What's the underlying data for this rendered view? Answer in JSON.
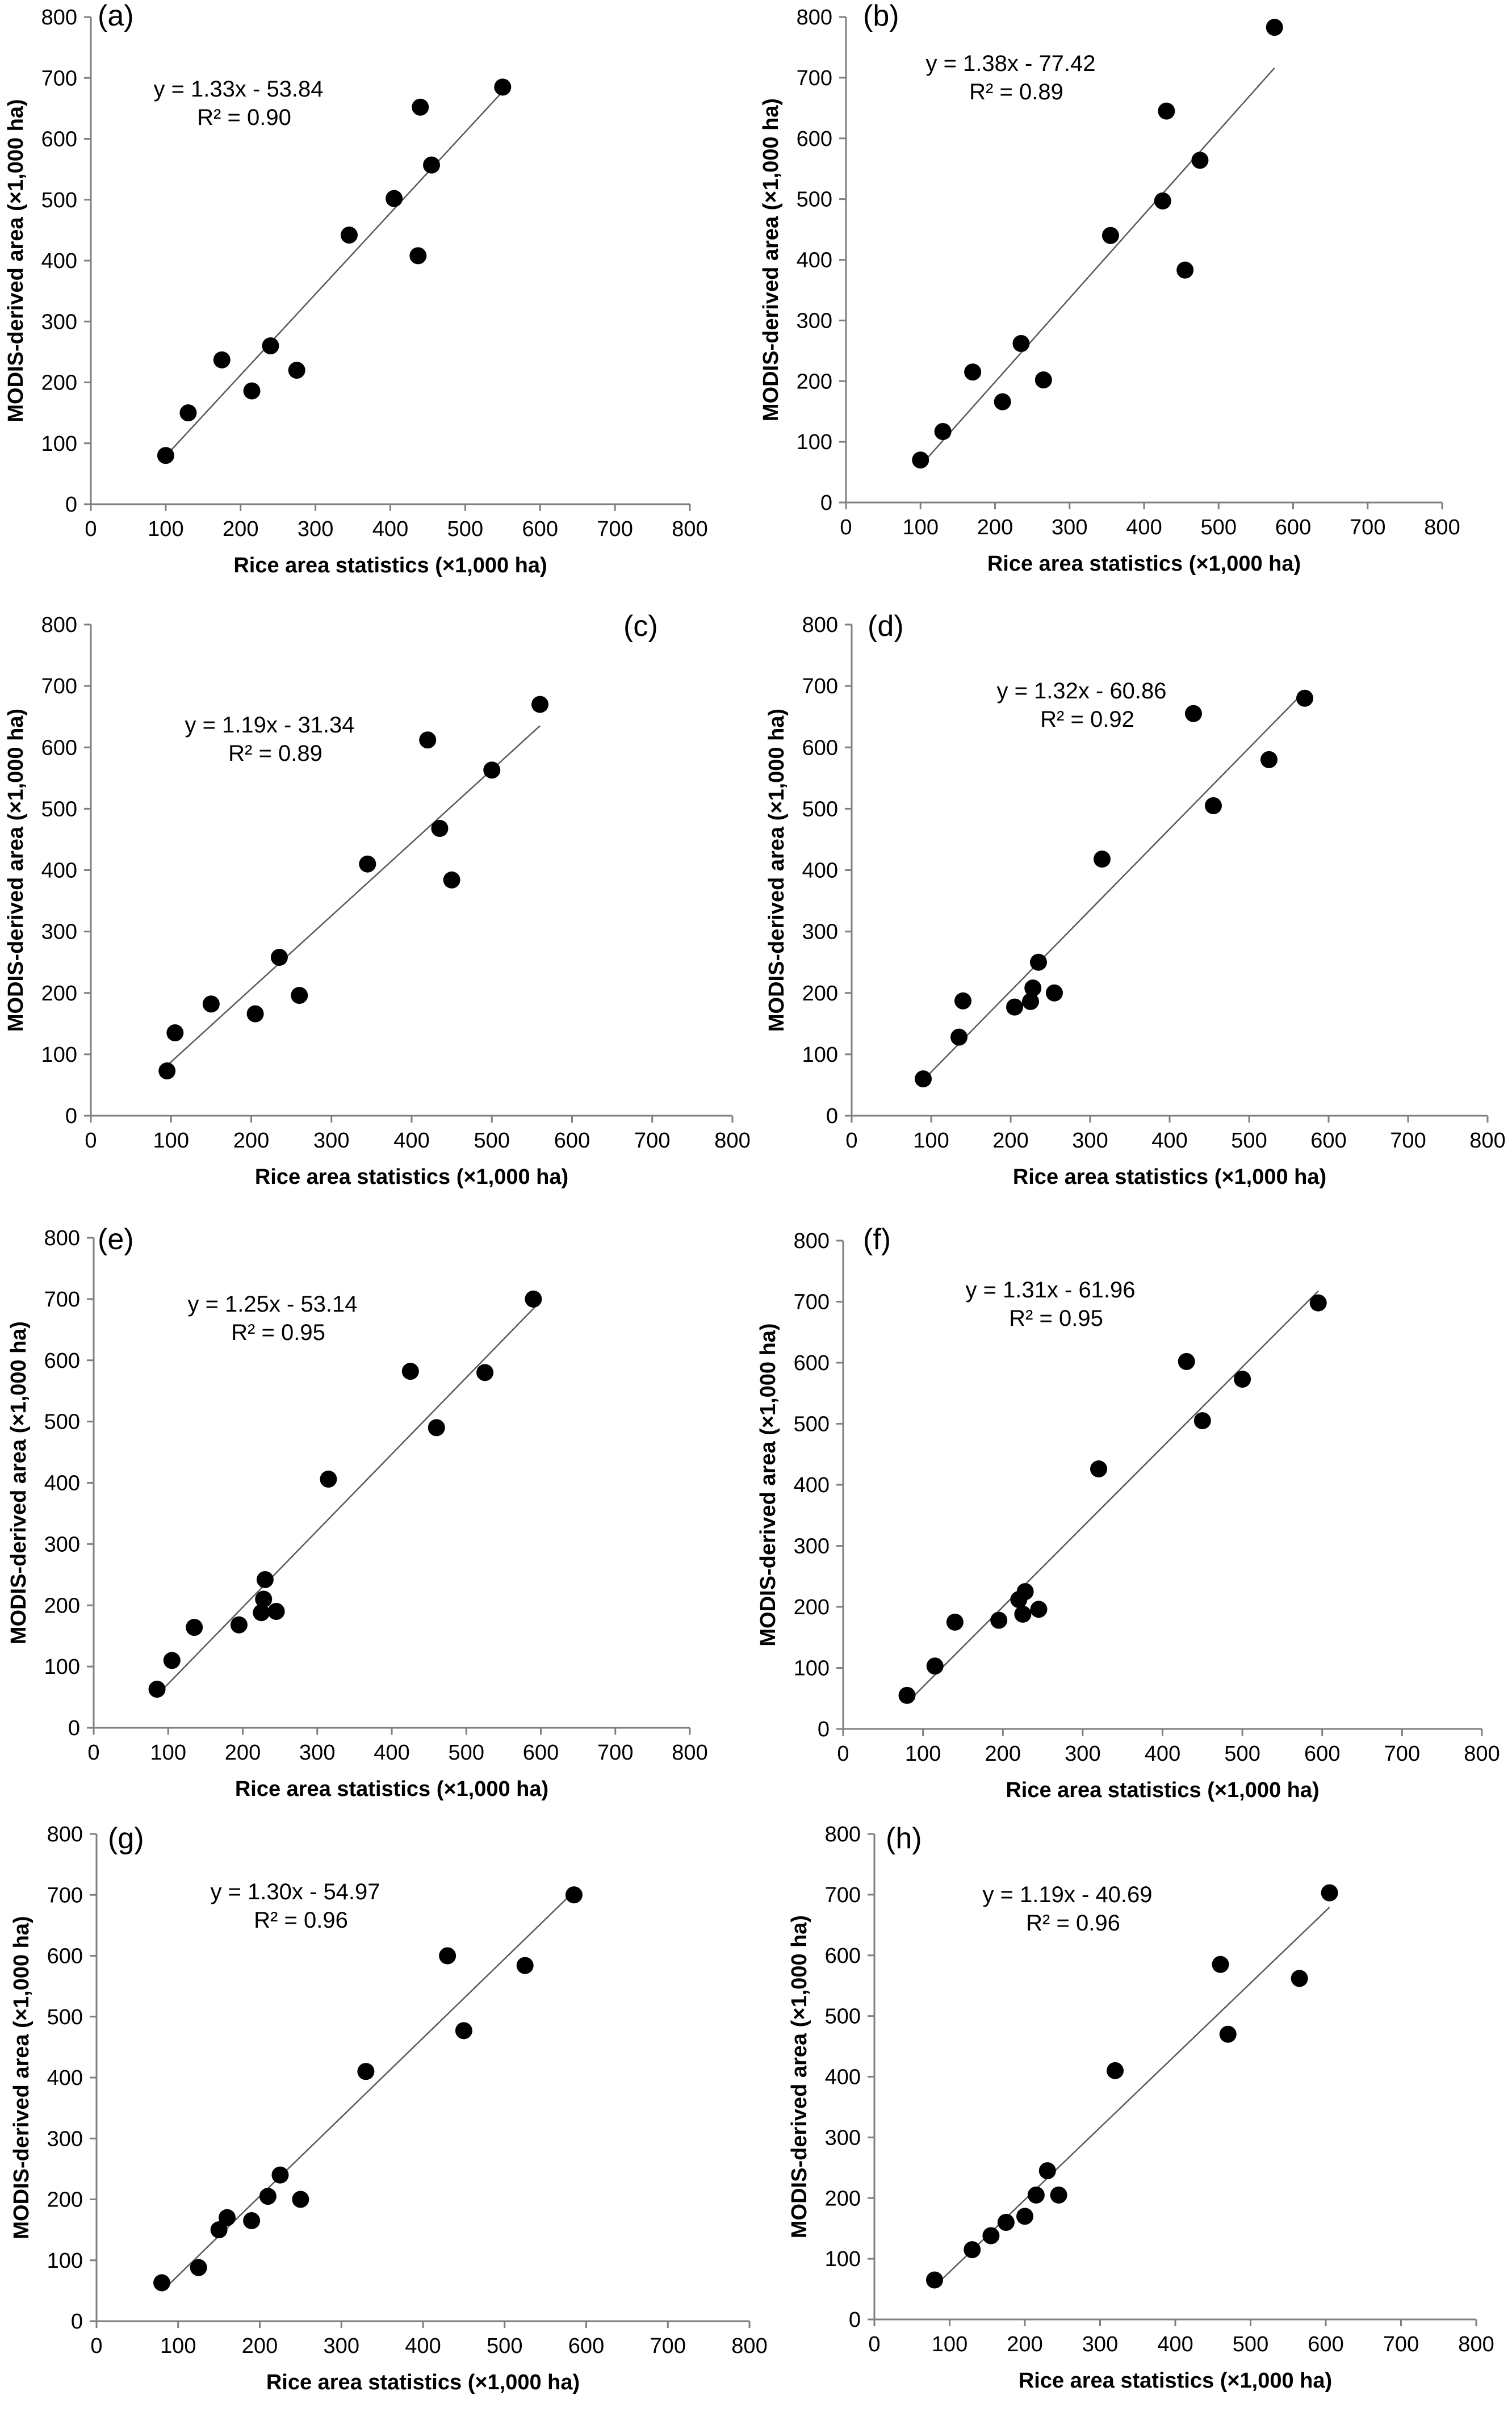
{
  "figure": {
    "panels_count": 8
  },
  "chart_data": [
    {
      "type": "scatter",
      "panel_label": "(a)",
      "xlabel": "Rice area statistics (×1,000 ha)",
      "ylabel": "MODIS-derived area (×1,000 ha)",
      "xlim": [
        0,
        800
      ],
      "ylim": [
        0,
        800
      ],
      "xticks": [
        "0",
        "100",
        "200",
        "300",
        "400",
        "500",
        "600",
        "700",
        "800"
      ],
      "yticks": [
        "0",
        "100",
        "200",
        "300",
        "400",
        "500",
        "600",
        "700",
        "800"
      ],
      "trendline": {
        "slope": 1.33,
        "intercept": -53.84,
        "x_range": [
          100,
          550
        ]
      },
      "equation": "y = 1.33x - 53.84",
      "r2": "R² = 0.90",
      "points": [
        [
          100,
          80
        ],
        [
          130,
          150
        ],
        [
          175,
          237
        ],
        [
          215,
          186
        ],
        [
          240,
          260
        ],
        [
          275,
          220
        ],
        [
          345,
          442
        ],
        [
          405,
          502
        ],
        [
          437,
          408
        ],
        [
          440,
          652
        ],
        [
          455,
          557
        ],
        [
          550,
          685
        ]
      ]
    },
    {
      "type": "scatter",
      "panel_label": "(b)",
      "xlabel": "Rice area statistics (×1,000 ha)",
      "ylabel": "MODIS-derived area (×1,000 ha)",
      "xlim": [
        0,
        800
      ],
      "ylim": [
        0,
        800
      ],
      "xticks": [
        "0",
        "100",
        "200",
        "300",
        "400",
        "500",
        "600",
        "700",
        "800"
      ],
      "yticks": [
        "0",
        "100",
        "200",
        "300",
        "400",
        "500",
        "600",
        "700",
        "800"
      ],
      "trendline": {
        "slope": 1.38,
        "intercept": -77.42,
        "x_range": [
          100,
          575
        ]
      },
      "equation": "y = 1.38x - 77.42",
      "r2": "R² = 0.89",
      "points": [
        [
          100,
          70
        ],
        [
          130,
          117
        ],
        [
          170,
          215
        ],
        [
          210,
          166
        ],
        [
          235,
          262
        ],
        [
          265,
          202
        ],
        [
          355,
          440
        ],
        [
          425,
          497
        ],
        [
          430,
          645
        ],
        [
          455,
          383
        ],
        [
          475,
          564
        ],
        [
          575,
          783
        ]
      ]
    },
    {
      "type": "scatter",
      "panel_label": "(c)",
      "xlabel": "Rice area statistics (×1,000 ha)",
      "ylabel": "MODIS-derived area (×1,000 ha)",
      "xlim": [
        0,
        800
      ],
      "ylim": [
        0,
        800
      ],
      "xticks": [
        "0",
        "100",
        "200",
        "300",
        "400",
        "500",
        "600",
        "700",
        "800"
      ],
      "yticks": [
        "0",
        "100",
        "200",
        "300",
        "400",
        "500",
        "600",
        "700",
        "800"
      ],
      "trendline": {
        "slope": 1.19,
        "intercept": -31.34,
        "x_range": [
          95,
          560
        ]
      },
      "equation": "y = 1.19x - 31.34",
      "r2": "R² = 0.89",
      "points": [
        [
          95,
          73
        ],
        [
          105,
          135
        ],
        [
          150,
          182
        ],
        [
          205,
          166
        ],
        [
          235,
          258
        ],
        [
          260,
          196
        ],
        [
          345,
          410
        ],
        [
          420,
          612
        ],
        [
          435,
          468
        ],
        [
          450,
          384
        ],
        [
          500,
          563
        ],
        [
          560,
          670
        ]
      ]
    },
    {
      "type": "scatter",
      "panel_label": "(d)",
      "xlabel": "Rice area statistics (×1,000 ha)",
      "ylabel": "MODIS-derived area (×1,000 ha)",
      "xlim": [
        0,
        800
      ],
      "ylim": [
        0,
        800
      ],
      "xticks": [
        "0",
        "100",
        "200",
        "300",
        "400",
        "500",
        "600",
        "700",
        "800"
      ],
      "yticks": [
        "0",
        "100",
        "200",
        "300",
        "400",
        "500",
        "600",
        "700",
        "800"
      ],
      "trendline": {
        "slope": 1.32,
        "intercept": -60.86,
        "x_range": [
          90,
          570
        ]
      },
      "equation": "y = 1.32x - 60.86",
      "r2": "R² = 0.92",
      "points": [
        [
          90,
          60
        ],
        [
          135,
          128
        ],
        [
          140,
          187
        ],
        [
          205,
          177
        ],
        [
          225,
          186
        ],
        [
          228,
          208
        ],
        [
          235,
          250
        ],
        [
          255,
          200
        ],
        [
          315,
          418
        ],
        [
          430,
          655
        ],
        [
          455,
          505
        ],
        [
          525,
          580
        ],
        [
          570,
          680
        ]
      ]
    },
    {
      "type": "scatter",
      "panel_label": "(e)",
      "xlabel": "Rice area statistics (×1,000 ha)",
      "ylabel": "MODIS-derived area (×1,000 ha)",
      "xlim": [
        0,
        800
      ],
      "ylim": [
        0,
        800
      ],
      "xticks": [
        "0",
        "100",
        "200",
        "300",
        "400",
        "500",
        "600",
        "700",
        "800"
      ],
      "yticks": [
        "0",
        "100",
        "200",
        "300",
        "400",
        "500",
        "600",
        "700",
        "800"
      ],
      "trendline": {
        "slope": 1.25,
        "intercept": -53.14,
        "x_range": [
          85,
          595
        ]
      },
      "equation": "y = 1.25x - 53.14",
      "r2": "R² = 0.95",
      "points": [
        [
          85,
          63
        ],
        [
          105,
          110
        ],
        [
          135,
          164
        ],
        [
          195,
          168
        ],
        [
          225,
          188
        ],
        [
          228,
          210
        ],
        [
          230,
          242
        ],
        [
          245,
          190
        ],
        [
          315,
          406
        ],
        [
          425,
          582
        ],
        [
          460,
          490
        ],
        [
          525,
          580
        ],
        [
          590,
          700
        ]
      ]
    },
    {
      "type": "scatter",
      "panel_label": "(f)",
      "xlabel": "Rice area statistics (×1,000 ha)",
      "ylabel": "MODIS-derived area (×1,000 ha)",
      "xlim": [
        0,
        800
      ],
      "ylim": [
        0,
        800
      ],
      "xticks": [
        "0",
        "100",
        "200",
        "300",
        "400",
        "500",
        "600",
        "700",
        "800"
      ],
      "yticks": [
        "0",
        "100",
        "200",
        "300",
        "400",
        "500",
        "600",
        "700",
        "800"
      ],
      "trendline": {
        "slope": 1.31,
        "intercept": -61.96,
        "x_range": [
          80,
          595
        ]
      },
      "equation": "y = 1.31x - 61.96",
      "r2": "R² = 0.95",
      "points": [
        [
          80,
          55
        ],
        [
          115,
          103
        ],
        [
          140,
          175
        ],
        [
          195,
          178
        ],
        [
          220,
          212
        ],
        [
          225,
          188
        ],
        [
          228,
          225
        ],
        [
          245,
          196
        ],
        [
          320,
          426
        ],
        [
          430,
          602
        ],
        [
          450,
          505
        ],
        [
          500,
          573
        ],
        [
          595,
          698
        ]
      ]
    },
    {
      "type": "scatter",
      "panel_label": "(g)",
      "xlabel": "Rice area statistics (×1,000 ha)",
      "ylabel": "MODIS-derived area (×1,000 ha)",
      "xlim": [
        0,
        800
      ],
      "ylim": [
        0,
        800
      ],
      "xticks": [
        "0",
        "100",
        "200",
        "300",
        "400",
        "500",
        "600",
        "700",
        "800"
      ],
      "yticks": [
        "0",
        "100",
        "200",
        "300",
        "400",
        "500",
        "600",
        "700",
        "800"
      ],
      "trendline": {
        "slope": 1.3,
        "intercept": -54.97,
        "x_range": [
          80,
          585
        ]
      },
      "equation": "y = 1.30x - 54.97",
      "r2": "R² = 0.96",
      "points": [
        [
          80,
          63
        ],
        [
          125,
          88
        ],
        [
          150,
          150
        ],
        [
          160,
          170
        ],
        [
          190,
          165
        ],
        [
          210,
          205
        ],
        [
          225,
          240
        ],
        [
          250,
          200
        ],
        [
          330,
          410
        ],
        [
          430,
          600
        ],
        [
          450,
          477
        ],
        [
          525,
          584
        ],
        [
          585,
          700
        ]
      ]
    },
    {
      "type": "scatter",
      "panel_label": "(h)",
      "xlabel": "Rice area statistics (×1,000 ha)",
      "ylabel": "MODIS-derived area (×1,000 ha)",
      "xlim": [
        0,
        800
      ],
      "ylim": [
        0,
        800
      ],
      "xticks": [
        "0",
        "100",
        "200",
        "300",
        "400",
        "500",
        "600",
        "700",
        "800"
      ],
      "yticks": [
        "0",
        "100",
        "200",
        "300",
        "400",
        "500",
        "600",
        "700",
        "800"
      ],
      "trendline": {
        "slope": 1.19,
        "intercept": -40.69,
        "x_range": [
          80,
          605
        ]
      },
      "equation": "y = 1.19x - 40.69",
      "r2": "R² = 0.96",
      "points": [
        [
          80,
          65
        ],
        [
          130,
          115
        ],
        [
          155,
          138
        ],
        [
          175,
          160
        ],
        [
          200,
          170
        ],
        [
          215,
          205
        ],
        [
          230,
          245
        ],
        [
          245,
          205
        ],
        [
          320,
          410
        ],
        [
          460,
          585
        ],
        [
          470,
          470
        ],
        [
          565,
          562
        ],
        [
          605,
          703
        ]
      ]
    }
  ]
}
